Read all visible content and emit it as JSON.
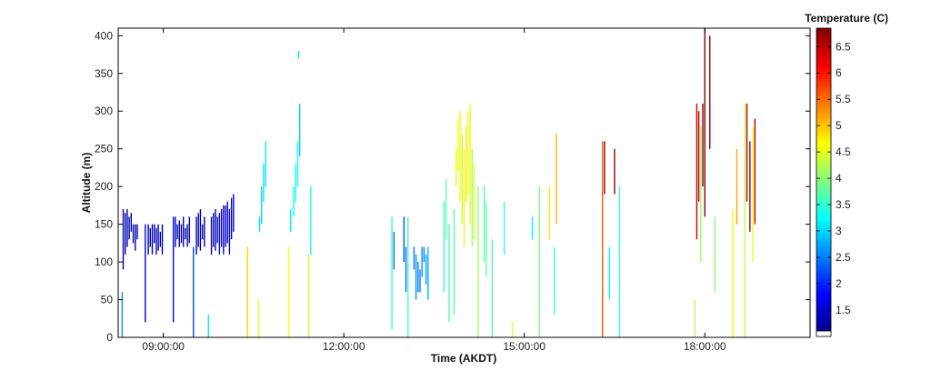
{
  "chart_data": {
    "type": "scatter",
    "xlabel": "Time (AKDT)",
    "ylabel": "Altitude (m)",
    "colorbar_label": "Temperature (C)",
    "xlim": [
      "08:15:00",
      "19:45:00"
    ],
    "ylim": [
      0,
      410
    ],
    "x_ticks": [
      "09:00:00",
      "12:00:00",
      "15:00:00",
      "18:00:00"
    ],
    "y_ticks": [
      0,
      50,
      100,
      150,
      200,
      250,
      300,
      350,
      400
    ],
    "colorbar_range": [
      1.1,
      6.85
    ],
    "colorbar_ticks": [
      1.5,
      2,
      2.5,
      3,
      3.5,
      4,
      4.5,
      5,
      5.5,
      6,
      6.5
    ],
    "grid": false,
    "colormap": "jet",
    "colormap_stops": [
      "#00008f",
      "#0000ff",
      "#00ffff",
      "#ffff00",
      "#ff0000",
      "#800000"
    ],
    "series": [
      {
        "values": [
          [
            "08:20",
            90,
            170,
            1.3
          ],
          [
            "08:22",
            110,
            165,
            1.3
          ],
          [
            "08:24",
            120,
            170,
            1.3
          ],
          [
            "08:26",
            130,
            160,
            1.3
          ],
          [
            "08:28",
            140,
            165,
            1.3
          ],
          [
            "08:30",
            125,
            150,
            1.3
          ],
          [
            "08:32",
            115,
            150,
            1.3
          ],
          [
            "08:34",
            130,
            150,
            1.3
          ],
          [
            "08:19",
            0,
            60,
            2.6
          ],
          [
            "08:42",
            20,
            150,
            1.6
          ],
          [
            "08:45",
            110,
            150,
            1.3
          ],
          [
            "08:47",
            120,
            145,
            1.3
          ],
          [
            "08:49",
            110,
            150,
            1.3
          ],
          [
            "08:51",
            125,
            150,
            1.3
          ],
          [
            "08:53",
            110,
            145,
            1.3
          ],
          [
            "08:55",
            115,
            150,
            1.3
          ],
          [
            "08:57",
            120,
            140,
            1.3
          ],
          [
            "08:59",
            110,
            150,
            1.3
          ],
          [
            "09:10",
            20,
            160,
            1.8
          ],
          [
            "09:12",
            120,
            160,
            1.3
          ],
          [
            "09:14",
            130,
            150,
            1.3
          ],
          [
            "09:16",
            120,
            155,
            1.3
          ],
          [
            "09:18",
            125,
            150,
            1.3
          ],
          [
            "09:20",
            120,
            160,
            1.3
          ],
          [
            "09:22",
            130,
            145,
            1.3
          ],
          [
            "09:24",
            120,
            150,
            1.3
          ],
          [
            "09:26",
            125,
            160,
            1.3
          ],
          [
            "09:30",
            0,
            120,
            2.2
          ],
          [
            "09:33",
            110,
            160,
            1.3
          ],
          [
            "09:35",
            120,
            165,
            1.3
          ],
          [
            "09:37",
            115,
            170,
            1.3
          ],
          [
            "09:39",
            130,
            150,
            1.3
          ],
          [
            "09:41",
            120,
            160,
            1.3
          ],
          [
            "09:45",
            0,
            30,
            3.1
          ],
          [
            "09:48",
            110,
            160,
            1.3
          ],
          [
            "09:50",
            120,
            165,
            1.3
          ],
          [
            "09:52",
            115,
            170,
            1.4
          ],
          [
            "09:54",
            125,
            160,
            1.4
          ],
          [
            "09:56",
            110,
            165,
            1.4
          ],
          [
            "09:58",
            120,
            170,
            1.4
          ],
          [
            "10:00",
            110,
            175,
            1.5
          ],
          [
            "10:02",
            120,
            175,
            1.5
          ],
          [
            "10:04",
            125,
            180,
            1.5
          ],
          [
            "10:06",
            110,
            170,
            1.5
          ],
          [
            "10:08",
            130,
            185,
            1.6
          ],
          [
            "10:10",
            140,
            190,
            1.7
          ],
          [
            "10:24",
            0,
            120,
            4.9
          ],
          [
            "10:35",
            0,
            50,
            4.5
          ],
          [
            "10:36",
            140,
            160,
            3.0
          ],
          [
            "10:38",
            150,
            200,
            3.0
          ],
          [
            "10:40",
            180,
            230,
            3.1
          ],
          [
            "10:42",
            200,
            260,
            3.1
          ],
          [
            "11:05",
            0,
            120,
            4.6
          ],
          [
            "11:07",
            140,
            170,
            3.2
          ],
          [
            "11:10",
            160,
            200,
            3.3
          ],
          [
            "11:12",
            180,
            230,
            3.3
          ],
          [
            "11:14",
            200,
            260,
            3.3
          ],
          [
            "11:16",
            240,
            310,
            2.9
          ],
          [
            "11:15",
            370,
            380,
            3.0
          ],
          [
            "11:25",
            0,
            110,
            4.4
          ],
          [
            "11:27",
            110,
            200,
            3.4
          ],
          [
            "12:48",
            10,
            160,
            3.5
          ],
          [
            "12:50",
            90,
            140,
            2.4
          ],
          [
            "13:00",
            100,
            160,
            2.3
          ],
          [
            "13:02",
            60,
            120,
            2.4
          ],
          [
            "13:04",
            0,
            160,
            3.6
          ],
          [
            "13:10",
            90,
            120,
            2.5
          ],
          [
            "13:12",
            50,
            110,
            2.6
          ],
          [
            "13:14",
            60,
            100,
            2.5
          ],
          [
            "13:16",
            60,
            90,
            2.5
          ],
          [
            "13:18",
            80,
            120,
            2.6
          ],
          [
            "13:20",
            100,
            120,
            2.5
          ],
          [
            "13:22",
            70,
            110,
            2.7
          ],
          [
            "13:24",
            50,
            120,
            2.8
          ],
          [
            "13:40",
            60,
            180,
            3.5
          ],
          [
            "13:42",
            130,
            210,
            3.8
          ],
          [
            "13:45",
            20,
            150,
            3.6
          ],
          [
            "13:50",
            30,
            170,
            3.7
          ],
          [
            "13:52",
            200,
            250,
            4.5
          ],
          [
            "13:54",
            220,
            290,
            4.7
          ],
          [
            "13:56",
            180,
            300,
            4.6
          ],
          [
            "13:58",
            150,
            270,
            4.4
          ],
          [
            "14:00",
            120,
            250,
            4.5
          ],
          [
            "14:02",
            180,
            280,
            4.8
          ],
          [
            "14:04",
            190,
            300,
            4.6
          ],
          [
            "14:06",
            150,
            310,
            4.5
          ],
          [
            "14:08",
            120,
            250,
            4.2
          ],
          [
            "14:10",
            130,
            230,
            4.4
          ],
          [
            "14:14",
            0,
            200,
            4.1
          ],
          [
            "14:20",
            100,
            200,
            3.6
          ],
          [
            "14:22",
            80,
            180,
            3.8
          ],
          [
            "14:28",
            0,
            130,
            3.7
          ],
          [
            "14:40",
            110,
            180,
            3.5
          ],
          [
            "14:48",
            0,
            20,
            4.5
          ],
          [
            "15:08",
            130,
            160,
            3.2
          ],
          [
            "15:15",
            0,
            200,
            3.9
          ],
          [
            "15:25",
            130,
            200,
            4.8
          ],
          [
            "15:30",
            30,
            120,
            3.5
          ],
          [
            "15:32",
            150,
            270,
            5.1
          ],
          [
            "16:18",
            0,
            260,
            5.6
          ],
          [
            "16:20",
            190,
            260,
            6.7
          ],
          [
            "16:25",
            50,
            120,
            3.2
          ],
          [
            "16:30",
            190,
            250,
            6.7
          ],
          [
            "16:35",
            0,
            200,
            3.5
          ],
          [
            "17:50",
            0,
            50,
            4.3
          ],
          [
            "17:52",
            130,
            310,
            6.4
          ],
          [
            "17:54",
            180,
            300,
            6.6
          ],
          [
            "17:56",
            100,
            280,
            4.1
          ],
          [
            "17:58",
            200,
            310,
            6.7
          ],
          [
            "18:00",
            160,
            410,
            6.8
          ],
          [
            "18:05",
            250,
            400,
            6.8
          ],
          [
            "18:10",
            60,
            160,
            4.0
          ],
          [
            "18:28",
            0,
            170,
            4.6
          ],
          [
            "18:32",
            150,
            250,
            5.2
          ],
          [
            "18:40",
            0,
            310,
            4.3
          ],
          [
            "18:42",
            180,
            310,
            6.6
          ],
          [
            "18:45",
            140,
            260,
            6.7
          ],
          [
            "18:48",
            100,
            280,
            4.5
          ],
          [
            "18:50",
            150,
            290,
            6.5
          ]
        ]
      }
    ]
  }
}
